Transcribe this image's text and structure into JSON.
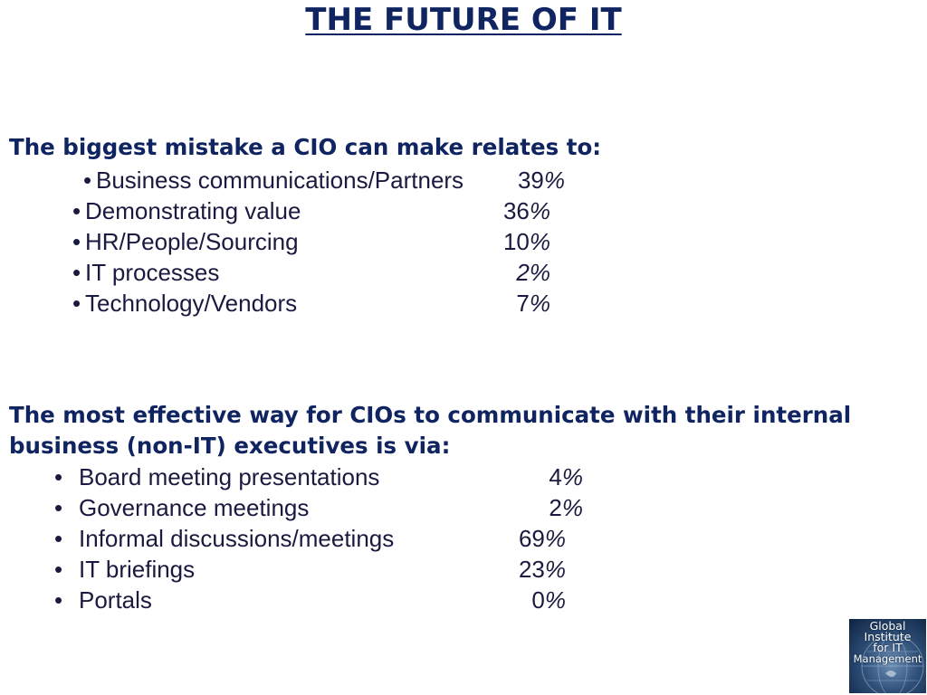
{
  "title": "THE FUTURE OF IT",
  "section1": {
    "heading": "The biggest mistake a CIO can make relates to:",
    "items": [
      {
        "label": "Business communications/Partners",
        "value": "39",
        "unit": "%"
      },
      {
        "label": "Demonstrating value",
        "value": "36",
        "unit": "%"
      },
      {
        "label": "HR/People/Sourcing",
        "value": "10",
        "unit": "%"
      },
      {
        "label": "IT processes",
        "value": "2",
        "unit": "%"
      },
      {
        "label": "Technology/Vendors",
        "value": "7",
        "unit": "%"
      }
    ]
  },
  "section2": {
    "heading": "The most effective way for CIOs to communicate with their internal business (non-IT) executives is via:",
    "items": [
      {
        "label": "Board meeting presentations",
        "value": "4",
        "unit": "%"
      },
      {
        "label": "Governance meetings",
        "value": "2",
        "unit": "%"
      },
      {
        "label": "Informal discussions/meetings",
        "value": "69",
        "unit": "%"
      },
      {
        "label": "IT briefings",
        "value": "23",
        "unit": "%"
      },
      {
        "label": "Portals",
        "value": "0",
        "unit": "%"
      }
    ]
  },
  "logo": {
    "lines": [
      "Global",
      "Institute",
      "for IT",
      "Management"
    ]
  }
}
